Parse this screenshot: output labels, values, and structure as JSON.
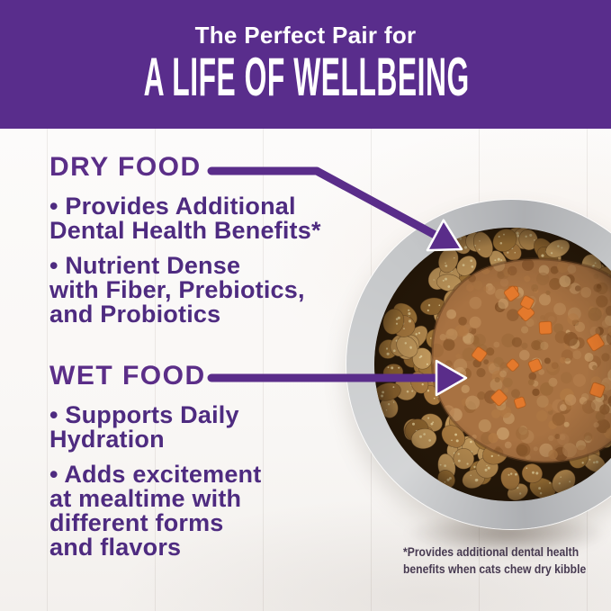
{
  "header": {
    "eyebrow": "The Perfect Pair for",
    "title": "A LIFE OF WELLBEING"
  },
  "sections": {
    "dry": {
      "heading": "DRY FOOD",
      "bullets": [
        {
          "lines": [
            "• Provides Additional",
            "Dental Health Benefits*"
          ]
        },
        {
          "lines": [
            "• Nutrient Dense",
            "with Fiber, Prebiotics,",
            "and Probiotics"
          ]
        }
      ]
    },
    "wet": {
      "heading": "WET FOOD",
      "bullets": [
        {
          "lines": [
            "• Supports Daily",
            "Hydration"
          ]
        },
        {
          "lines": [
            "• Adds excitement",
            "at mealtime with",
            "different forms",
            "and flavors"
          ]
        }
      ]
    }
  },
  "footnote": {
    "lines": [
      "*Provides additional dental health",
      "benefits when cats chew dry kibble"
    ]
  },
  "image": {
    "description": "Stainless steel bowl of dry kibble topped with wet food pate containing carrot pieces, on white painted wood planks"
  },
  "colors": {
    "brand_purple": "#592d8c",
    "heading_purple": "#5b2e88",
    "body_text_purple": "#4e2b80",
    "arrow_purple": "#5a2d8a",
    "footnote_color": "#473a51",
    "kibble_brown": "#a97c41",
    "wet_food_brown": "#a87242",
    "carrot_orange": "#e4792c",
    "bowl_silver": "#d2d4d6",
    "background_white": "#faf9f7"
  }
}
